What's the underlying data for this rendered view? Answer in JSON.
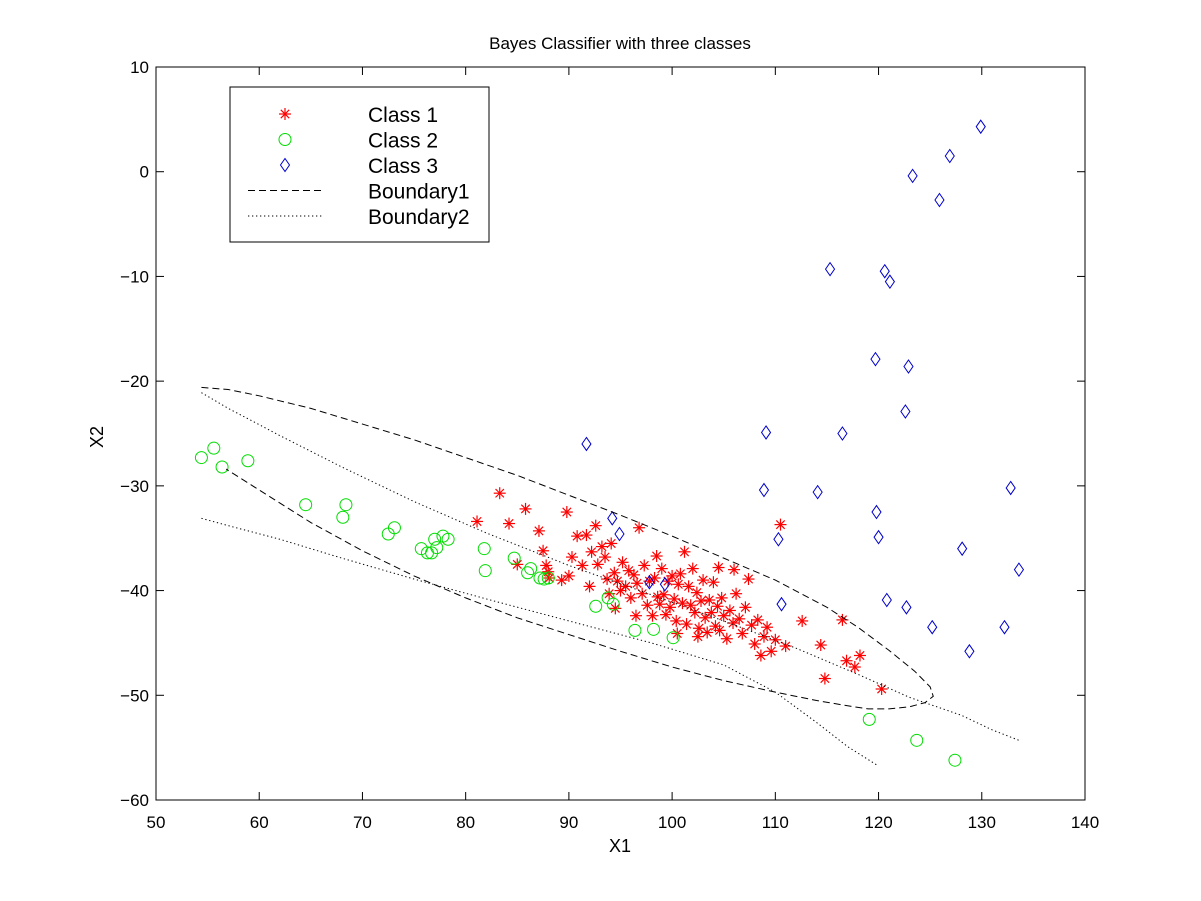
{
  "chart_data": {
    "type": "scatter",
    "title": "Bayes Classifier with three classes",
    "xlabel": "X1",
    "ylabel": "X2",
    "xlim": [
      50,
      140
    ],
    "ylim": [
      -60,
      10
    ],
    "xticks": [
      50,
      60,
      70,
      80,
      90,
      100,
      110,
      120,
      130,
      140
    ],
    "yticks": [
      -60,
      -50,
      -40,
      -30,
      -20,
      -10,
      0,
      10
    ],
    "xtick_labels": [
      "50",
      "60",
      "70",
      "80",
      "90",
      "100",
      "110",
      "120",
      "130",
      "140"
    ],
    "ytick_labels": [
      "−60",
      "−50",
      "−40",
      "−30",
      "−20",
      "−10",
      "0",
      "10"
    ],
    "grid": false,
    "legend_position": "top-left",
    "series": [
      {
        "name": "Class 1",
        "marker": "asterisk",
        "color": "#ff0000",
        "points": [
          [
            81.1,
            -33.4
          ],
          [
            83.3,
            -30.7
          ],
          [
            84.2,
            -33.6
          ],
          [
            85.8,
            -32.2
          ],
          [
            87.1,
            -34.3
          ],
          [
            87.5,
            -36.2
          ],
          [
            87.8,
            -37.6
          ],
          [
            88.1,
            -38.8
          ],
          [
            89.3,
            -39.0
          ],
          [
            89.8,
            -32.5
          ],
          [
            90.3,
            -36.8
          ],
          [
            90.8,
            -34.8
          ],
          [
            91.3,
            -37.6
          ],
          [
            91.7,
            -34.7
          ],
          [
            92.2,
            -36.3
          ],
          [
            92.6,
            -33.8
          ],
          [
            92.8,
            -37.5
          ],
          [
            93.2,
            -35.8
          ],
          [
            93.5,
            -36.8
          ],
          [
            93.7,
            -38.9
          ],
          [
            93.9,
            -40.3
          ],
          [
            94.1,
            -35.5
          ],
          [
            94.4,
            -38.3
          ],
          [
            94.7,
            -39.1
          ],
          [
            95.0,
            -40.0
          ],
          [
            95.2,
            -37.3
          ],
          [
            95.5,
            -39.6
          ],
          [
            95.8,
            -38.1
          ],
          [
            96.0,
            -40.7
          ],
          [
            96.3,
            -38.5
          ],
          [
            96.6,
            -39.3
          ],
          [
            96.8,
            -34.0
          ],
          [
            97.1,
            -40.3
          ],
          [
            97.3,
            -37.6
          ],
          [
            97.6,
            -41.4
          ],
          [
            97.8,
            -39.1
          ],
          [
            98.1,
            -42.4
          ],
          [
            98.3,
            -38.8
          ],
          [
            98.6,
            -40.6
          ],
          [
            98.8,
            -41.3
          ],
          [
            99.0,
            -37.9
          ],
          [
            99.2,
            -40.4
          ],
          [
            99.4,
            -42.3
          ],
          [
            99.6,
            -39.1
          ],
          [
            99.8,
            -41.6
          ],
          [
            100.0,
            -38.6
          ],
          [
            100.2,
            -40.8
          ],
          [
            100.4,
            -42.9
          ],
          [
            100.6,
            -39.4
          ],
          [
            100.8,
            -38.4
          ],
          [
            101.0,
            -41.2
          ],
          [
            101.2,
            -36.3
          ],
          [
            101.4,
            -43.2
          ],
          [
            101.6,
            -39.6
          ],
          [
            101.8,
            -41.4
          ],
          [
            102.0,
            -37.9
          ],
          [
            102.2,
            -42.1
          ],
          [
            102.4,
            -40.2
          ],
          [
            102.6,
            -43.6
          ],
          [
            102.8,
            -41.0
          ],
          [
            103.0,
            -39.0
          ],
          [
            103.2,
            -42.6
          ],
          [
            103.4,
            -44.0
          ],
          [
            103.6,
            -40.9
          ],
          [
            103.8,
            -42.1
          ],
          [
            104.0,
            -39.2
          ],
          [
            104.2,
            -43.4
          ],
          [
            104.4,
            -41.5
          ],
          [
            104.6,
            -43.8
          ],
          [
            104.8,
            -40.7
          ],
          [
            105.0,
            -42.4
          ],
          [
            105.3,
            -44.6
          ],
          [
            105.6,
            -41.9
          ],
          [
            105.9,
            -43.1
          ],
          [
            106.2,
            -40.3
          ],
          [
            106.5,
            -42.7
          ],
          [
            106.8,
            -44.1
          ],
          [
            107.1,
            -41.6
          ],
          [
            107.4,
            -38.9
          ],
          [
            107.7,
            -43.3
          ],
          [
            108.0,
            -45.1
          ],
          [
            108.3,
            -42.8
          ],
          [
            108.6,
            -46.2
          ],
          [
            108.9,
            -44.4
          ],
          [
            109.2,
            -43.5
          ],
          [
            109.6,
            -45.8
          ],
          [
            110.0,
            -44.7
          ],
          [
            110.5,
            -33.7
          ],
          [
            111.0,
            -45.3
          ],
          [
            112.6,
            -42.9
          ],
          [
            114.4,
            -45.2
          ],
          [
            114.8,
            -48.4
          ],
          [
            116.5,
            -42.8
          ],
          [
            116.9,
            -46.7
          ],
          [
            117.7,
            -47.3
          ],
          [
            118.2,
            -46.2
          ],
          [
            120.3,
            -49.4
          ],
          [
            104.5,
            -37.8
          ],
          [
            98.5,
            -36.7
          ],
          [
            92.0,
            -39.6
          ],
          [
            106.0,
            -38.0
          ],
          [
            96.5,
            -42.4
          ],
          [
            100.5,
            -44.1
          ],
          [
            102.5,
            -44.4
          ],
          [
            88.0,
            -38.2
          ],
          [
            90.0,
            -38.6
          ],
          [
            85.0,
            -37.5
          ],
          [
            94.5,
            -41.7
          ]
        ]
      },
      {
        "name": "Class 2",
        "marker": "circle",
        "color": "#00dd00",
        "points": [
          [
            54.4,
            -27.3
          ],
          [
            55.6,
            -26.4
          ],
          [
            56.4,
            -28.2
          ],
          [
            58.9,
            -27.6
          ],
          [
            64.5,
            -31.8
          ],
          [
            68.1,
            -33.0
          ],
          [
            68.4,
            -31.8
          ],
          [
            72.5,
            -34.6
          ],
          [
            73.1,
            -34.0
          ],
          [
            75.7,
            -36.0
          ],
          [
            76.3,
            -36.4
          ],
          [
            76.7,
            -36.4
          ],
          [
            77.0,
            -35.1
          ],
          [
            77.2,
            -35.9
          ],
          [
            77.8,
            -34.8
          ],
          [
            78.3,
            -35.1
          ],
          [
            81.8,
            -36.0
          ],
          [
            81.9,
            -38.1
          ],
          [
            84.7,
            -36.9
          ],
          [
            86.0,
            -38.3
          ],
          [
            86.3,
            -37.9
          ],
          [
            87.2,
            -38.8
          ],
          [
            87.6,
            -38.9
          ],
          [
            88.0,
            -38.8
          ],
          [
            92.6,
            -41.5
          ],
          [
            93.8,
            -40.7
          ],
          [
            94.3,
            -41.3
          ],
          [
            96.4,
            -43.8
          ],
          [
            98.2,
            -43.7
          ],
          [
            100.1,
            -44.5
          ],
          [
            119.1,
            -52.3
          ],
          [
            123.7,
            -54.3
          ],
          [
            127.4,
            -56.2
          ]
        ]
      },
      {
        "name": "Class 3",
        "marker": "diamond",
        "color": "#0000cc",
        "points": [
          [
            91.7,
            -26.0
          ],
          [
            94.2,
            -33.1
          ],
          [
            94.9,
            -34.6
          ],
          [
            97.8,
            -39.2
          ],
          [
            99.3,
            -39.4
          ],
          [
            108.9,
            -30.4
          ],
          [
            109.1,
            -24.9
          ],
          [
            110.3,
            -35.1
          ],
          [
            110.6,
            -41.3
          ],
          [
            114.1,
            -30.6
          ],
          [
            115.3,
            -9.3
          ],
          [
            116.5,
            -25.0
          ],
          [
            119.7,
            -17.9
          ],
          [
            119.8,
            -32.5
          ],
          [
            120.0,
            -34.9
          ],
          [
            120.6,
            -9.5
          ],
          [
            120.8,
            -40.9
          ],
          [
            121.1,
            -10.5
          ],
          [
            122.6,
            -22.9
          ],
          [
            122.7,
            -41.6
          ],
          [
            122.9,
            -18.6
          ],
          [
            123.3,
            -0.4
          ],
          [
            125.2,
            -43.5
          ],
          [
            125.9,
            -2.7
          ],
          [
            126.9,
            1.5
          ],
          [
            128.1,
            -36.0
          ],
          [
            128.8,
            -45.8
          ],
          [
            129.9,
            4.3
          ],
          [
            132.2,
            -43.5
          ],
          [
            132.8,
            -30.2
          ],
          [
            133.6,
            -38.0
          ]
        ]
      },
      {
        "name": "Boundary1",
        "style": "dashed",
        "color": "#000000",
        "points": [
          [
            54.4,
            -20.6
          ],
          [
            57.0,
            -20.8
          ],
          [
            60.0,
            -21.4
          ],
          [
            65.0,
            -22.6
          ],
          [
            70.0,
            -24.1
          ],
          [
            75.0,
            -25.6
          ],
          [
            80.0,
            -27.3
          ],
          [
            85.0,
            -29.0
          ],
          [
            90.0,
            -30.9
          ],
          [
            95.0,
            -32.8
          ],
          [
            100.0,
            -34.8
          ],
          [
            105.0,
            -36.9
          ],
          [
            110.0,
            -39.0
          ],
          [
            115.0,
            -41.6
          ],
          [
            118.0,
            -43.5
          ],
          [
            121.0,
            -45.7
          ],
          [
            123.5,
            -47.7
          ],
          [
            125.0,
            -49.2
          ],
          [
            125.3,
            -50.1
          ],
          [
            124.5,
            -50.7
          ],
          [
            123.0,
            -51.1
          ],
          [
            121.0,
            -51.3
          ],
          [
            119.0,
            -51.3
          ],
          [
            117.0,
            -51.0
          ],
          [
            114.0,
            -50.5
          ],
          [
            110.0,
            -49.7
          ],
          [
            105.0,
            -48.6
          ],
          [
            100.0,
            -47.3
          ],
          [
            95.0,
            -45.8
          ],
          [
            90.0,
            -44.2
          ],
          [
            85.0,
            -42.6
          ],
          [
            80.0,
            -40.7
          ],
          [
            75.0,
            -38.6
          ],
          [
            70.0,
            -36.2
          ],
          [
            65.0,
            -33.5
          ],
          [
            60.0,
            -30.4
          ],
          [
            56.8,
            -28.4
          ]
        ]
      },
      {
        "name": "Boundary2",
        "style": "dotted",
        "color": "#000000",
        "segments": [
          [
            [
              54.4,
              -21.1
            ],
            [
              57.0,
              -22.6
            ],
            [
              62.0,
              -25.2
            ],
            [
              68.0,
              -28.2
            ],
            [
              75.0,
              -31.5
            ],
            [
              82.0,
              -34.5
            ],
            [
              90.0,
              -37.6
            ],
            [
              98.0,
              -40.4
            ],
            [
              105.0,
              -42.9
            ],
            [
              112.0,
              -45.5
            ],
            [
              118.0,
              -48.0
            ],
            [
              123.0,
              -50.2
            ],
            [
              128.0,
              -51.9
            ],
            [
              131.0,
              -53.3
            ],
            [
              133.6,
              -54.3
            ]
          ],
          [
            [
              54.4,
              -33.1
            ],
            [
              57.0,
              -33.8
            ],
            [
              62.0,
              -35.1
            ],
            [
              68.0,
              -36.9
            ],
            [
              75.0,
              -38.9
            ],
            [
              82.0,
              -40.8
            ],
            [
              90.0,
              -42.9
            ],
            [
              98.0,
              -45.0
            ],
            [
              105.0,
              -47.1
            ],
            [
              110.0,
              -49.7
            ],
            [
              114.0,
              -52.6
            ],
            [
              117.0,
              -54.9
            ],
            [
              119.9,
              -56.7
            ]
          ]
        ]
      }
    ]
  }
}
